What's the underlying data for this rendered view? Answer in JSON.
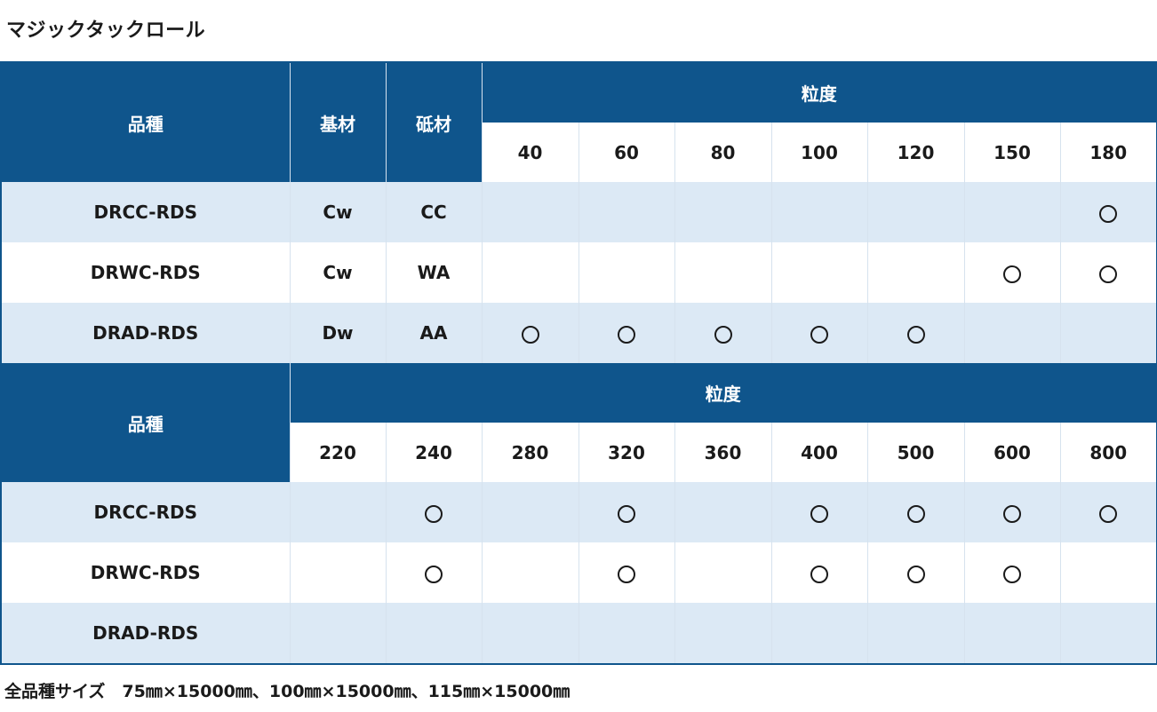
{
  "title": "マジックタックロール",
  "headers": {
    "product": "品種",
    "base": "基材",
    "abrasive": "砥材",
    "grit": "粒度"
  },
  "table1": {
    "grits": [
      "40",
      "60",
      "80",
      "100",
      "120",
      "150",
      "180"
    ],
    "rows": [
      {
        "product": "DRCC-RDS",
        "base": "Cw",
        "abrasive": "CC",
        "marks": [
          false,
          false,
          false,
          false,
          false,
          false,
          true
        ]
      },
      {
        "product": "DRWC-RDS",
        "base": "Cw",
        "abrasive": "WA",
        "marks": [
          false,
          false,
          false,
          false,
          false,
          true,
          true
        ]
      },
      {
        "product": "DRAD-RDS",
        "base": "Dw",
        "abrasive": "AA",
        "marks": [
          true,
          true,
          true,
          true,
          true,
          false,
          false
        ]
      }
    ]
  },
  "table2": {
    "grits": [
      "220",
      "240",
      "280",
      "320",
      "360",
      "400",
      "500",
      "600",
      "800"
    ],
    "rows": [
      {
        "product": "DRCC-RDS",
        "marks": [
          false,
          true,
          false,
          true,
          false,
          true,
          true,
          true,
          true
        ]
      },
      {
        "product": "DRWC-RDS",
        "marks": [
          false,
          true,
          false,
          true,
          false,
          true,
          true,
          true,
          false
        ]
      },
      {
        "product": "DRAD-RDS",
        "marks": [
          false,
          false,
          false,
          false,
          false,
          false,
          false,
          false,
          false
        ]
      }
    ]
  },
  "mark_symbol": "○",
  "footer": "全品種サイズ　75㎜×15000㎜、100㎜×15000㎜、115㎜×15000㎜",
  "colors": {
    "header_bg": "#0f558c",
    "row_alt_bg": "#dce9f5",
    "row_plain_bg": "#ffffff"
  }
}
